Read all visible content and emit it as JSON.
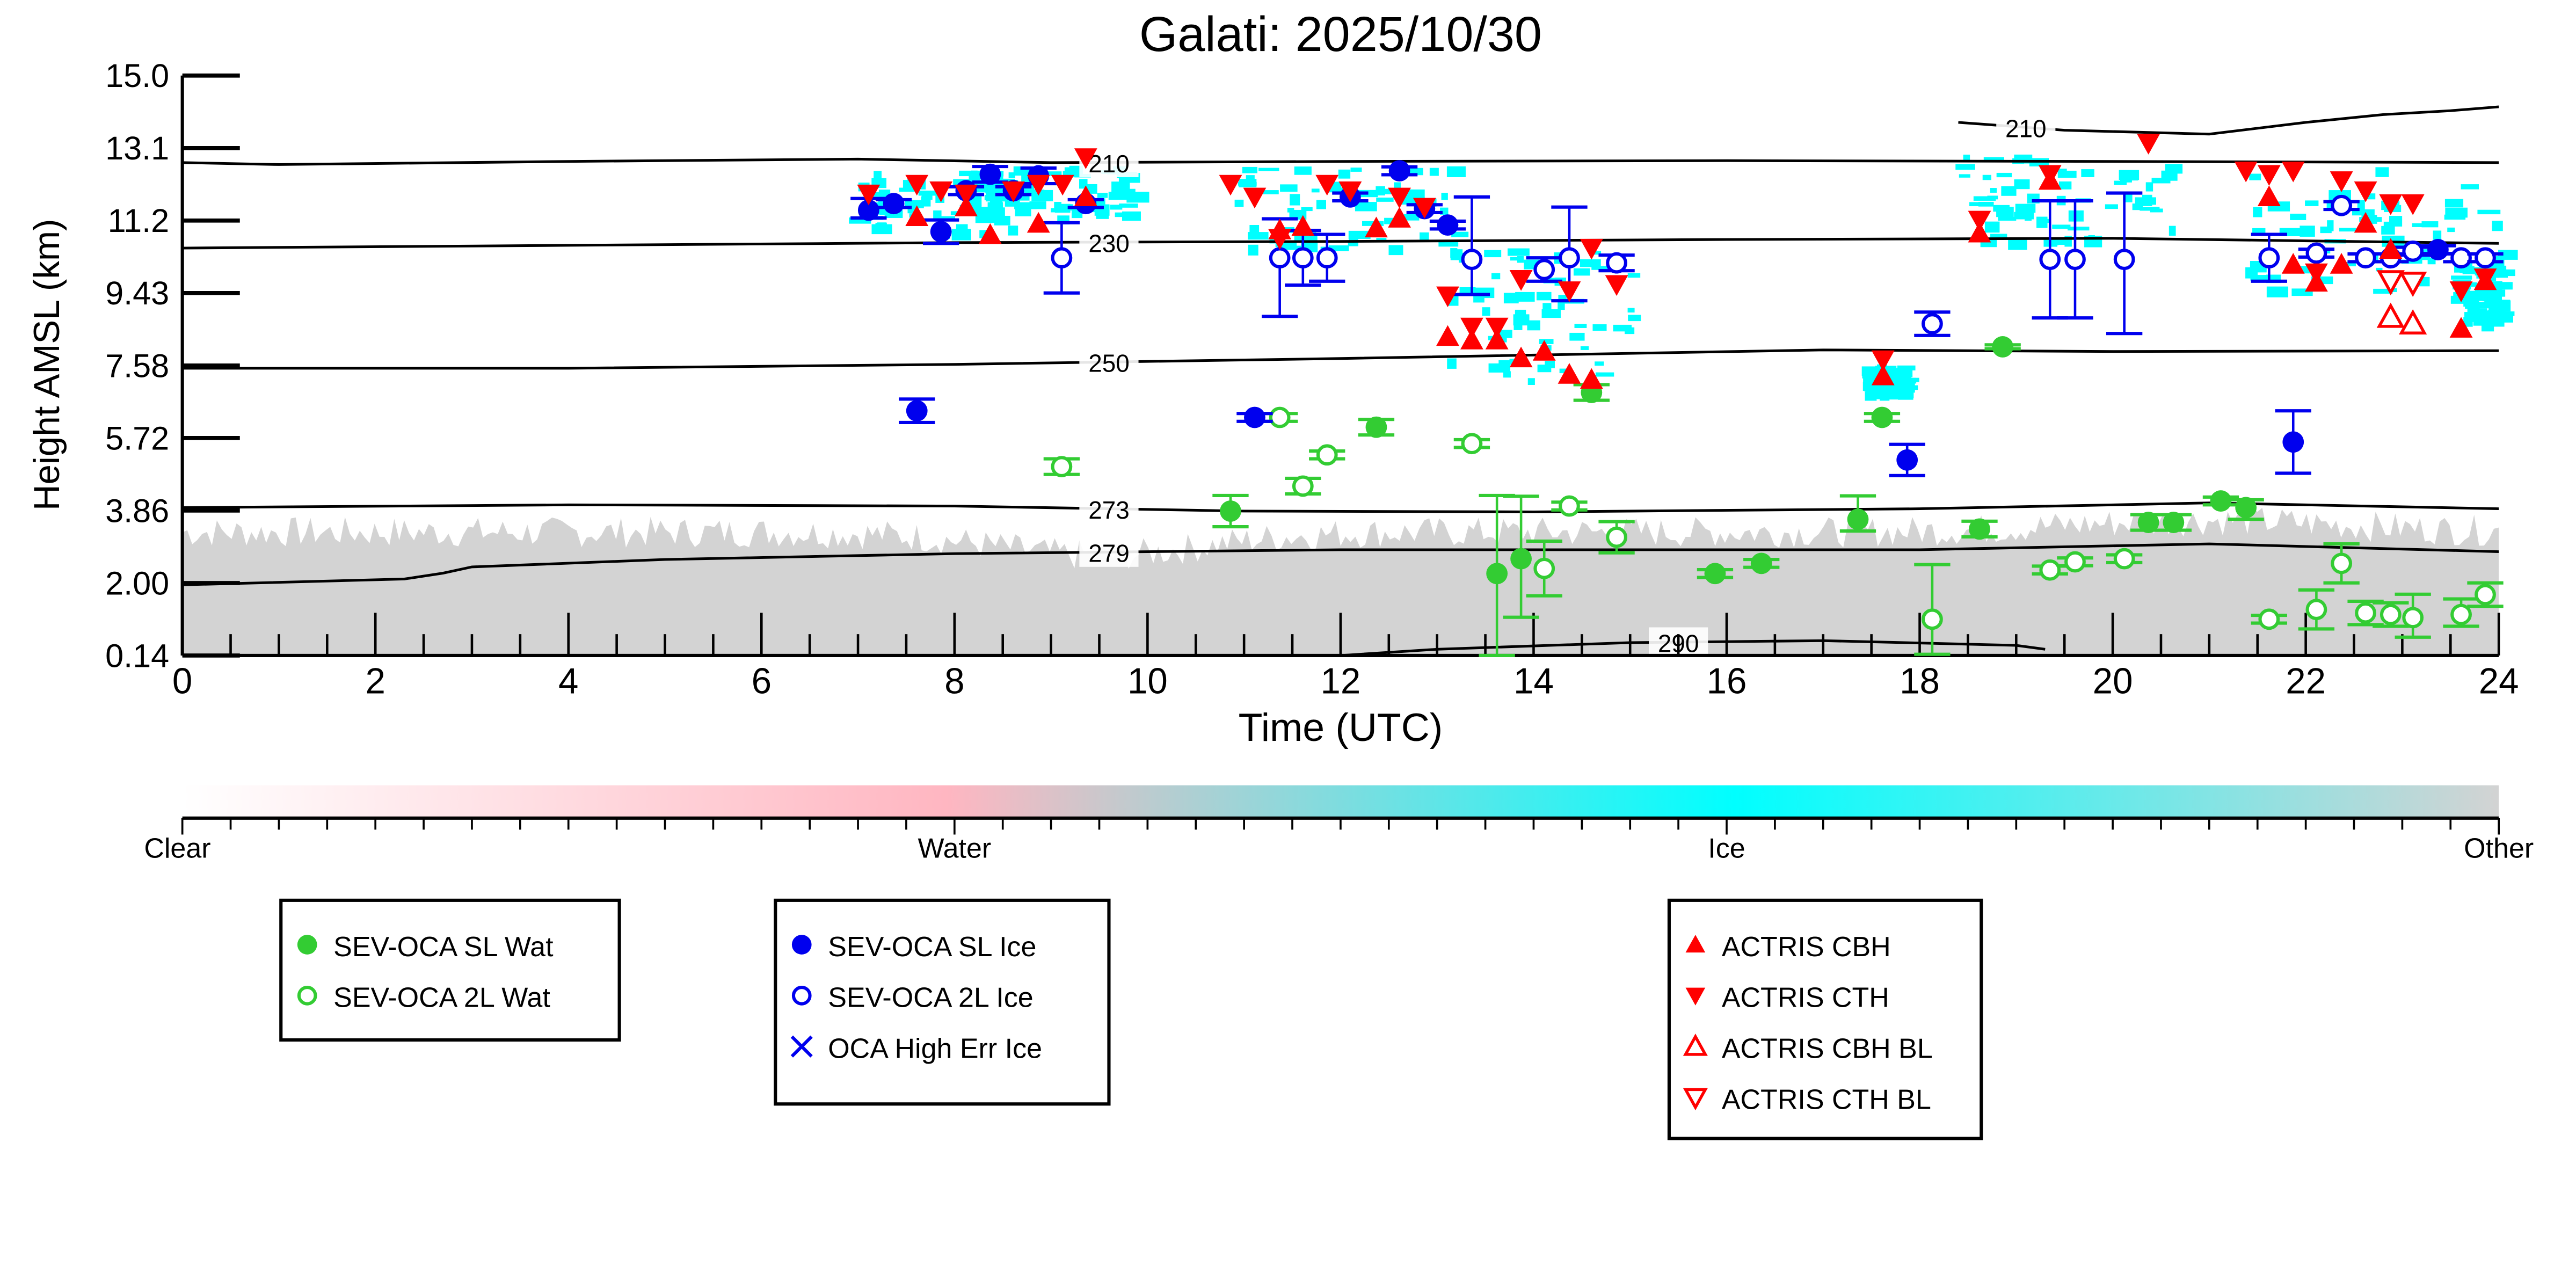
{
  "chart_data": {
    "type": "scatter",
    "title": "Galati: 2025/10/30",
    "xlabel": "Time (UTC)",
    "ylabel": "Height AMSL (km)",
    "xlim": [
      0,
      24
    ],
    "ylim": [
      0.14,
      15.0
    ],
    "xticks": [
      "0",
      "2",
      "4",
      "6",
      "8",
      "10",
      "12",
      "14",
      "16",
      "18",
      "20",
      "22",
      "24"
    ],
    "yticks": [
      "15.0",
      "13.1",
      "11.2",
      "9.43",
      "7.58",
      "5.72",
      "3.86",
      "2.00",
      "0.14"
    ],
    "colors": {
      "water": "#33cc33",
      "ice": "#0000ee",
      "actris": "#ff0000",
      "cyan": "#00ffff",
      "other": "#d3d3d3",
      "pink": "#ffb6c1"
    },
    "contours": [
      {
        "label": "210",
        "label_at": 9.6,
        "points": [
          [
            0,
            12.77
          ],
          [
            1,
            12.72
          ],
          [
            4,
            12.8
          ],
          [
            7,
            12.86
          ],
          [
            9,
            12.77
          ],
          [
            12,
            12.8
          ],
          [
            16,
            12.82
          ],
          [
            20,
            12.8
          ],
          [
            24,
            12.77
          ]
        ]
      },
      {
        "label": "230",
        "label_at": 9.6,
        "points": [
          [
            0,
            10.58
          ],
          [
            4,
            10.65
          ],
          [
            8,
            10.72
          ],
          [
            12,
            10.75
          ],
          [
            16,
            10.8
          ],
          [
            20,
            10.83
          ],
          [
            24,
            10.7
          ]
        ]
      },
      {
        "label": "250",
        "label_at": 9.6,
        "points": [
          [
            0,
            7.5
          ],
          [
            4,
            7.5
          ],
          [
            8,
            7.6
          ],
          [
            12,
            7.75
          ],
          [
            17,
            7.97
          ],
          [
            20,
            7.93
          ],
          [
            24,
            7.95
          ]
        ]
      },
      {
        "label": "273",
        "label_at": 9.6,
        "points": [
          [
            0,
            3.93
          ],
          [
            4,
            4.0
          ],
          [
            8,
            3.97
          ],
          [
            11,
            3.84
          ],
          [
            14,
            3.82
          ],
          [
            18,
            3.9
          ],
          [
            21,
            4.05
          ],
          [
            24,
            3.9
          ]
        ]
      },
      {
        "label": "279",
        "label_at": 9.6,
        "points": [
          [
            0,
            1.95
          ],
          [
            2.3,
            2.1
          ],
          [
            2.7,
            2.25
          ],
          [
            3,
            2.41
          ],
          [
            5,
            2.6
          ],
          [
            8,
            2.75
          ],
          [
            12,
            2.85
          ],
          [
            18,
            2.85
          ],
          [
            21,
            3.0
          ],
          [
            24,
            2.8
          ]
        ]
      },
      {
        "label": "290",
        "label_at": 15.5,
        "points": [
          [
            12,
            0.14
          ],
          [
            13,
            0.3
          ],
          [
            15,
            0.47
          ],
          [
            17,
            0.52
          ],
          [
            19,
            0.4
          ],
          [
            19.3,
            0.3
          ]
        ]
      },
      {
        "label": "210",
        "label_at": 19.1,
        "points": [
          [
            18.4,
            13.8
          ],
          [
            19.5,
            13.6
          ],
          [
            21,
            13.5
          ],
          [
            22,
            13.8
          ],
          [
            22.8,
            14.0
          ],
          [
            23.5,
            14.1
          ],
          [
            24,
            14.2
          ]
        ]
      }
    ],
    "series": [
      {
        "name": "SEV-OCA SL Wat",
        "marker": "filled-circle",
        "color": "#33cc33",
        "points": [
          [
            10.86,
            3.84,
            0.4,
            0.4
          ],
          [
            12.37,
            5.99,
            0.2,
            0.2
          ],
          [
            13.62,
            2.24,
            2.1,
            2.0
          ],
          [
            13.87,
            2.62,
            1.5,
            1.6
          ],
          [
            14.6,
            6.88,
            0.2,
            0.2
          ],
          [
            15.88,
            2.24,
            0.1,
            0.1
          ],
          [
            16.36,
            2.5,
            0.1,
            0.1
          ],
          [
            17.36,
            3.63,
            0.3,
            0.6
          ],
          [
            17.61,
            6.24,
            0.1,
            0.1
          ],
          [
            18.62,
            3.38,
            0.2,
            0.2
          ],
          [
            18.86,
            8.05,
            0.05,
            0.05
          ],
          [
            20.37,
            3.55,
            0.2,
            0.2
          ],
          [
            20.63,
            3.55,
            0.2,
            0.2
          ],
          [
            21.12,
            4.1,
            0.1,
            0.1
          ],
          [
            21.38,
            3.93,
            0.3,
            0.2
          ]
        ]
      },
      {
        "name": "SEV-OCA 2L Wat",
        "marker": "open-circle",
        "color": "#33cc33",
        "points": [
          [
            9.11,
            4.98,
            0.2,
            0.2
          ],
          [
            11.37,
            6.24,
            0.1,
            0.1
          ],
          [
            11.61,
            4.48,
            0.2,
            0.2
          ],
          [
            11.86,
            5.28,
            0.1,
            0.1
          ],
          [
            13.36,
            5.57,
            0.1,
            0.1
          ],
          [
            14.11,
            2.37,
            0.7,
            0.7
          ],
          [
            14.37,
            3.97,
            0.1,
            0.1
          ],
          [
            14.86,
            3.17,
            0.4,
            0.4
          ],
          [
            18.13,
            1.07,
            0.9,
            1.4
          ],
          [
            19.35,
            2.33,
            0.1,
            0.1
          ],
          [
            19.61,
            2.54,
            0.1,
            0.1
          ],
          [
            20.12,
            2.62,
            0.1,
            0.1
          ],
          [
            21.62,
            1.07,
            0.1,
            0.1
          ],
          [
            22.11,
            1.32,
            0.5,
            0.5
          ],
          [
            22.37,
            2.5,
            0.5,
            0.5
          ],
          [
            22.62,
            1.23,
            0.3,
            0.3
          ],
          [
            22.88,
            1.19,
            0.3,
            0.3
          ],
          [
            23.11,
            1.11,
            0.5,
            0.6
          ],
          [
            23.61,
            1.19,
            0.3,
            0.4
          ],
          [
            23.86,
            1.7,
            0.3,
            0.3
          ]
        ]
      },
      {
        "name": "SEV-OCA SL Ice",
        "marker": "filled-circle",
        "color": "#0000ee",
        "points": [
          [
            7.11,
            11.55,
            0.2,
            0.3
          ],
          [
            7.37,
            11.72,
            0.1,
            0.1
          ],
          [
            7.61,
            6.41,
            0.3,
            0.3
          ],
          [
            7.86,
            11.0,
            0.3,
            0.3
          ],
          [
            8.12,
            12.05,
            0.1,
            0.1
          ],
          [
            8.37,
            12.47,
            0.2,
            0.2
          ],
          [
            8.61,
            12.05,
            0.1,
            0.1
          ],
          [
            8.87,
            12.43,
            0.2,
            0.2
          ],
          [
            9.36,
            11.72,
            0.1,
            0.1
          ],
          [
            11.11,
            6.24,
            0.1,
            0.1
          ],
          [
            12.1,
            11.89,
            0.1,
            0.1
          ],
          [
            12.61,
            12.56,
            0.1,
            0.1
          ],
          [
            12.87,
            11.59,
            0.1,
            0.1
          ],
          [
            13.11,
            11.17,
            0.1,
            0.1
          ],
          [
            17.87,
            5.15,
            0.4,
            0.4
          ],
          [
            21.87,
            5.61,
            0.8,
            0.8
          ],
          [
            23.37,
            10.54,
            0.1,
            0.1
          ]
        ]
      },
      {
        "name": "SEV-OCA 2L Ice",
        "marker": "open-circle",
        "color": "#0000ee",
        "points": [
          [
            9.11,
            10.33,
            0.9,
            0.9
          ],
          [
            11.37,
            10.33,
            1.5,
            1.0
          ],
          [
            11.61,
            10.33,
            0.7,
            0.7
          ],
          [
            11.86,
            10.33,
            0.6,
            0.6
          ],
          [
            13.36,
            10.29,
            0.9,
            1.6
          ],
          [
            14.11,
            10.03,
            0.3,
            0.3
          ],
          [
            14.37,
            10.33,
            1.1,
            1.3
          ],
          [
            14.86,
            10.2,
            0.2,
            0.2
          ],
          [
            18.13,
            8.64,
            0.3,
            0.3
          ],
          [
            19.35,
            10.29,
            1.5,
            1.5
          ],
          [
            19.61,
            10.29,
            1.5,
            1.5
          ],
          [
            20.12,
            10.29,
            1.9,
            1.7
          ],
          [
            21.62,
            10.33,
            0.6,
            0.6
          ],
          [
            22.11,
            10.45,
            0.1,
            0.1
          ],
          [
            22.37,
            11.67,
            0.1,
            0.1
          ],
          [
            22.62,
            10.33,
            0.1,
            0.1
          ],
          [
            22.88,
            10.33,
            0.1,
            0.1
          ],
          [
            23.11,
            10.5,
            0.1,
            0.1
          ],
          [
            23.61,
            10.33,
            0.1,
            0.1
          ],
          [
            23.86,
            10.33,
            0.1,
            0.1
          ]
        ]
      },
      {
        "name": "OCA High Err Ice",
        "marker": "cross",
        "color": "#0000ee",
        "points": []
      },
      {
        "name": "ACTRIS CBH",
        "marker": "filled-triangle-up",
        "color": "#ff0000",
        "points": [
          [
            7.61,
            11.38
          ],
          [
            8.12,
            11.63
          ],
          [
            8.37,
            10.92
          ],
          [
            8.87,
            11.21
          ],
          [
            9.36,
            11.89
          ],
          [
            11.37,
            11.04
          ],
          [
            11.61,
            11.13
          ],
          [
            12.37,
            11.09
          ],
          [
            12.61,
            11.34
          ],
          [
            13.11,
            8.31
          ],
          [
            13.36,
            8.22
          ],
          [
            13.62,
            8.22
          ],
          [
            13.87,
            7.76
          ],
          [
            14.11,
            7.93
          ],
          [
            14.37,
            7.34
          ],
          [
            14.6,
            7.21
          ],
          [
            17.62,
            7.3
          ],
          [
            18.62,
            10.96
          ],
          [
            19.35,
            12.31
          ],
          [
            21.62,
            11.89
          ],
          [
            21.87,
            10.16
          ],
          [
            22.11,
            9.7
          ],
          [
            22.37,
            10.16
          ],
          [
            22.62,
            11.21
          ],
          [
            22.88,
            10.54
          ],
          [
            23.61,
            8.52
          ],
          [
            23.86,
            9.74
          ]
        ]
      },
      {
        "name": "ACTRIS CTH",
        "marker": "filled-triangle-down",
        "color": "#ff0000",
        "points": [
          [
            7.11,
            11.97
          ],
          [
            7.61,
            12.22
          ],
          [
            7.86,
            12.05
          ],
          [
            8.12,
            11.97
          ],
          [
            8.61,
            12.05
          ],
          [
            8.87,
            12.22
          ],
          [
            9.12,
            12.22
          ],
          [
            9.36,
            12.9
          ],
          [
            10.86,
            12.22
          ],
          [
            11.11,
            11.89
          ],
          [
            11.37,
            10.83
          ],
          [
            11.86,
            12.22
          ],
          [
            12.1,
            12.05
          ],
          [
            12.61,
            11.89
          ],
          [
            12.87,
            11.63
          ],
          [
            13.11,
            9.36
          ],
          [
            13.36,
            8.56
          ],
          [
            13.62,
            8.56
          ],
          [
            13.87,
            9.78
          ],
          [
            14.37,
            9.49
          ],
          [
            14.6,
            10.58
          ],
          [
            14.86,
            9.65
          ],
          [
            17.62,
            7.72
          ],
          [
            18.62,
            11.3
          ],
          [
            19.35,
            12.47
          ],
          [
            20.37,
            13.27
          ],
          [
            21.38,
            12.56
          ],
          [
            21.62,
            12.47
          ],
          [
            21.87,
            12.56
          ],
          [
            22.11,
            9.95
          ],
          [
            22.37,
            12.31
          ],
          [
            22.62,
            12.05
          ],
          [
            22.88,
            11.72
          ],
          [
            23.11,
            11.72
          ],
          [
            23.61,
            9.49
          ],
          [
            23.86,
            9.82
          ]
        ]
      },
      {
        "name": "ACTRIS CBH BL",
        "marker": "open-triangle-up",
        "color": "#ff0000",
        "points": [
          [
            22.88,
            8.81
          ],
          [
            23.11,
            8.64
          ]
        ]
      },
      {
        "name": "ACTRIS CTH BL",
        "marker": "open-triangle-down",
        "color": "#ff0000",
        "points": [
          [
            22.88,
            9.74
          ],
          [
            23.11,
            9.7
          ]
        ]
      }
    ],
    "colorbar": {
      "labels": [
        "Clear",
        "Water",
        "Ice",
        "Other"
      ]
    },
    "legends": [
      [
        "SEV-OCA SL Wat",
        "SEV-OCA 2L Wat"
      ],
      [
        "SEV-OCA SL Ice",
        "SEV-OCA 2L Ice",
        "OCA High Err Ice"
      ],
      [
        "ACTRIS CBH",
        "ACTRIS CTH",
        "ACTRIS CBH BL",
        "ACTRIS CTH BL"
      ]
    ]
  }
}
